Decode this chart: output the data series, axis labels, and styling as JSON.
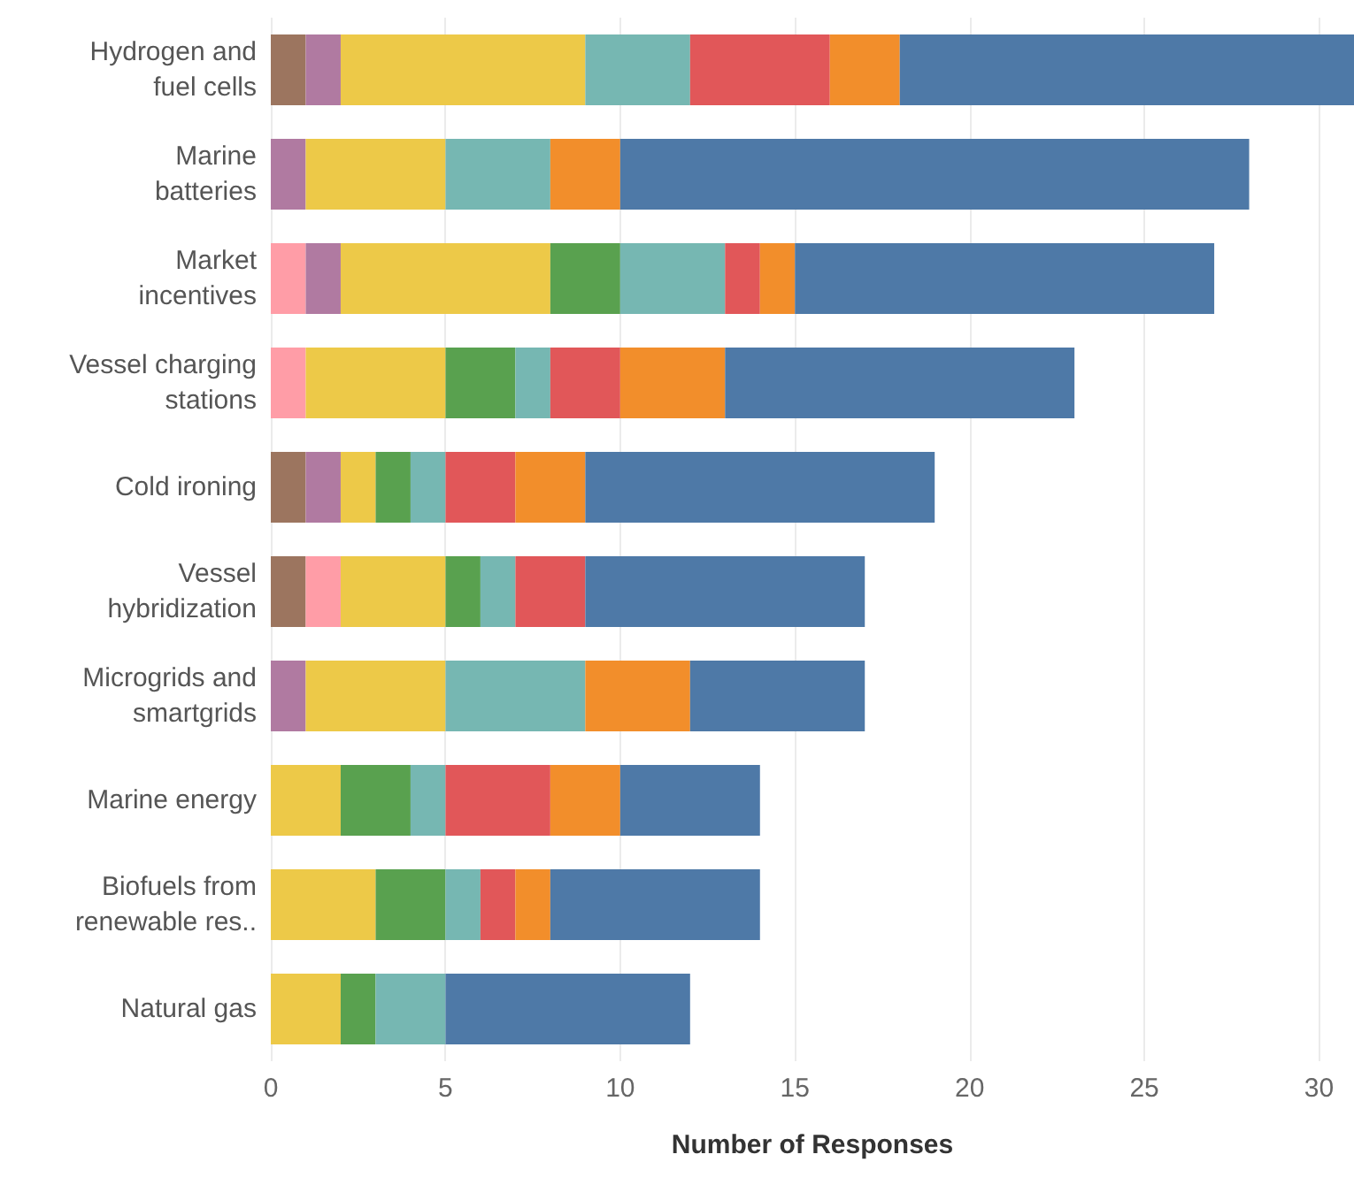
{
  "chart_data": {
    "type": "bar",
    "orientation": "horizontal",
    "stacked": true,
    "xlabel": "Number of Responses",
    "categories": [
      "Hydrogen and\nfuel cells",
      "Marine\nbatteries",
      "Market\nincentives",
      "Vessel charging\nstations",
      "Cold ironing",
      "Vessel\nhybridization",
      "Microgrids and\nsmartgrids",
      "Marine energy",
      "Biofuels from\nrenewable res..",
      "Natural gas"
    ],
    "series": [
      {
        "color": "#9c755f",
        "values": [
          1,
          null,
          null,
          null,
          1,
          1,
          null,
          null,
          null,
          null
        ]
      },
      {
        "color": "#ff9da7",
        "values": [
          null,
          null,
          1,
          1,
          null,
          1,
          null,
          null,
          null,
          null
        ]
      },
      {
        "color": "#b07aa1",
        "values": [
          1,
          1,
          1,
          null,
          1,
          null,
          1,
          null,
          null,
          null
        ]
      },
      {
        "color": "#edc948",
        "values": [
          7,
          4,
          6,
          4,
          1,
          3,
          4,
          2,
          3,
          2
        ]
      },
      {
        "color": "#59a14f",
        "values": [
          null,
          null,
          2,
          2,
          1,
          1,
          null,
          2,
          2,
          1
        ]
      },
      {
        "color": "#76b7b2",
        "values": [
          3,
          3,
          3,
          1,
          1,
          1,
          4,
          1,
          1,
          2
        ]
      },
      {
        "color": "#e15759",
        "values": [
          4,
          null,
          1,
          2,
          2,
          2,
          null,
          3,
          1,
          null
        ]
      },
      {
        "color": "#f28e2b",
        "values": [
          2,
          2,
          1,
          3,
          2,
          null,
          3,
          2,
          1,
          null
        ]
      },
      {
        "color": "#4e79a7",
        "values": [
          13,
          18,
          12,
          10,
          10,
          8,
          5,
          4,
          6,
          7
        ]
      }
    ],
    "xlim": [
      0,
      31
    ],
    "xticks": [
      0,
      5,
      10,
      15,
      20,
      25,
      30
    ],
    "grid": "x"
  }
}
